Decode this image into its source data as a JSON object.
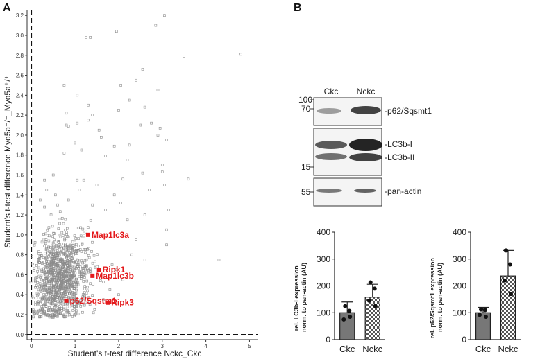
{
  "panel_a_label": "A",
  "panel_b_label": "B",
  "chart_data": [
    {
      "type": "scatter",
      "title": "",
      "xlabel": "Student's t-test difference Nckc_Ckc",
      "ylabel": "Student's t-test difference Myo5a⁻/⁻_Myo5a⁺/⁺",
      "xlim": [
        -0.1,
        5.2
      ],
      "ylim": [
        -0.05,
        3.25
      ],
      "xticks": [
        "0",
        "1",
        "2",
        "3",
        "4",
        "5"
      ],
      "yticks": [
        "0.0",
        "0.2",
        "0.4",
        "0.6",
        "0.8",
        "1.0",
        "1.2",
        "1.4",
        "1.6",
        "1.8",
        "2.0",
        "2.2",
        "2.4",
        "2.6",
        "2.8",
        "3.0",
        "3.2"
      ],
      "background_points": [
        [
          3.05,
          3.2
        ],
        [
          2.85,
          3.1
        ],
        [
          1.95,
          3.04
        ],
        [
          1.25,
          2.98
        ],
        [
          1.35,
          2.98
        ],
        [
          4.8,
          2.81
        ],
        [
          3.5,
          2.79
        ],
        [
          2.55,
          2.66
        ],
        [
          0.75,
          2.5
        ],
        [
          2.05,
          2.5
        ],
        [
          2.4,
          2.55
        ],
        [
          1.05,
          2.4
        ],
        [
          1.3,
          2.3
        ],
        [
          2.25,
          2.35
        ],
        [
          2.9,
          2.45
        ],
        [
          0.8,
          2.22
        ],
        [
          1.4,
          2.2
        ],
        [
          2.0,
          2.25
        ],
        [
          2.6,
          2.28
        ],
        [
          0.8,
          2.1
        ],
        [
          0.85,
          2.09
        ],
        [
          1.05,
          2.12
        ],
        [
          1.3,
          2.15
        ],
        [
          1.55,
          2.05
        ],
        [
          2.5,
          2.1
        ],
        [
          2.75,
          2.12
        ],
        [
          2.95,
          2.07
        ],
        [
          2.9,
          2.0
        ],
        [
          3.1,
          1.95
        ],
        [
          1.6,
          1.98
        ],
        [
          2.25,
          1.9
        ],
        [
          1.9,
          1.89
        ],
        [
          1.0,
          1.92
        ],
        [
          1.15,
          1.85
        ],
        [
          2.35,
          1.95
        ],
        [
          1.7,
          1.79
        ],
        [
          0.75,
          1.82
        ],
        [
          0.5,
          1.6
        ],
        [
          1.2,
          1.55
        ],
        [
          2.1,
          1.56
        ],
        [
          2.55,
          1.62
        ],
        [
          3.0,
          1.63
        ],
        [
          3.6,
          1.56
        ],
        [
          3.0,
          1.7
        ],
        [
          2.2,
          1.75
        ],
        [
          2.7,
          1.45
        ],
        [
          3.05,
          1.5
        ],
        [
          3.15,
          1.25
        ],
        [
          2.6,
          1.2
        ],
        [
          1.9,
          1.4
        ],
        [
          2.2,
          1.15
        ],
        [
          3.1,
          1.05
        ],
        [
          2.05,
          1.32
        ],
        [
          1.5,
          1.5
        ],
        [
          4.3,
          0.75
        ],
        [
          3.1,
          0.9
        ],
        [
          2.4,
          0.95
        ],
        [
          2.6,
          0.75
        ],
        [
          2.3,
          0.8
        ],
        [
          1.7,
          1.25
        ],
        [
          1.4,
          1.3
        ],
        [
          1.1,
          1.45
        ],
        [
          0.3,
          1.55
        ],
        [
          0.35,
          1.45
        ],
        [
          0.55,
          1.4
        ],
        [
          0.2,
          1.35
        ],
        [
          0.6,
          1.3
        ],
        [
          0.85,
          1.35
        ],
        [
          1.0,
          1.25
        ],
        [
          0.3,
          1.28
        ],
        [
          0.45,
          1.2
        ],
        [
          1.05,
          1.55
        ],
        [
          1.8,
          0.45
        ],
        [
          1.95,
          0.65
        ],
        [
          2.1,
          0.55
        ],
        [
          1.65,
          0.35
        ],
        [
          1.2,
          0.3
        ],
        [
          1.45,
          0.25
        ],
        [
          2.0,
          0.4
        ],
        [
          1.85,
          0.7
        ]
      ],
      "dense_cloud": {
        "count": 1100,
        "x_center": 0.55,
        "x_spread": 0.38,
        "y_center": 0.55,
        "y_spread": 0.22
      },
      "highlighted": [
        {
          "label": "Map1lc3a",
          "x": 1.3,
          "y": 1.0
        },
        {
          "label": "Ripk1",
          "x": 1.55,
          "y": 0.65
        },
        {
          "label": "Map1lc3b",
          "x": 1.4,
          "y": 0.59
        },
        {
          "label": "p62/Sqstm1",
          "x": 0.8,
          "y": 0.34
        },
        {
          "label": "Ripk3",
          "x": 1.75,
          "y": 0.32
        }
      ],
      "reference_lines": {
        "x": 0,
        "y": 0,
        "style": "dashed"
      }
    },
    {
      "type": "bar",
      "title": "",
      "categories": [
        "Ckc",
        "Nckc"
      ],
      "values": [
        100,
        158
      ],
      "error_upper": [
        140,
        206
      ],
      "points": [
        [
          125,
          107,
          75,
          85
        ],
        [
          213,
          190,
          145,
          125
        ]
      ],
      "ylabel": "rel. LC3b-I expression\nnorm. to pan-actin (AU)",
      "ylim": [
        0,
        400
      ],
      "yticks": [
        "0",
        "100",
        "200",
        "300",
        "400"
      ],
      "bar_fills": [
        "solid-gray",
        "checkered"
      ]
    },
    {
      "type": "bar",
      "title": "",
      "categories": [
        "Ckc",
        "Nckc"
      ],
      "values": [
        100,
        237
      ],
      "error_upper": [
        120,
        332
      ],
      "points": [
        [
          112,
          110,
          92,
          85
        ],
        [
          332,
          280,
          220,
          170
        ]
      ],
      "ylabel": "rel. p62/Sqsmt1 expression\nnorm. to pan-actin (AU)",
      "ylim": [
        0,
        400
      ],
      "yticks": [
        "0",
        "100",
        "200",
        "300",
        "400"
      ],
      "bar_fills": [
        "solid-gray",
        "checkered"
      ]
    }
  ],
  "western_blot": {
    "lanes": [
      "Ckc",
      "Nckc"
    ],
    "mw_markers": [
      "100",
      "70",
      "15",
      "55"
    ],
    "band_labels": [
      "-p62/Sqsmt1",
      "-LC3b-I",
      "-LC3b-II",
      "-pan-actin"
    ]
  }
}
